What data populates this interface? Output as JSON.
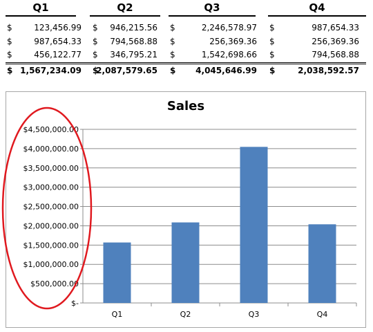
{
  "table": {
    "quarters": [
      "Q1",
      "Q2",
      "Q3",
      "Q4"
    ],
    "currency_symbol": "$",
    "rows": [
      [
        "123,456.99",
        "946,215.56",
        "2,246,578.97",
        "987,654.33"
      ],
      [
        "987,654.33",
        "794,568.88",
        "256,369.36",
        "256,369.36"
      ],
      [
        "456,122.77",
        "346,795.21",
        "1,542,698.66",
        "794,568.88"
      ]
    ],
    "totals": [
      "1,567,234.09",
      "2,087,579.65",
      "4,045,646.99",
      "2,038,592.57"
    ]
  },
  "annotation": {
    "shape": "ellipse",
    "color": "#e0191f"
  },
  "chart_data": {
    "type": "bar",
    "title": "Sales",
    "categories": [
      "Q1",
      "Q2",
      "Q3",
      "Q4"
    ],
    "values": [
      1567234.09,
      2087579.65,
      4045646.99,
      2038592.57
    ],
    "ylim": [
      0,
      4500000
    ],
    "yticks": [
      0,
      500000,
      1000000,
      1500000,
      2000000,
      2500000,
      3000000,
      3500000,
      4000000,
      4500000
    ],
    "ytick_labels": [
      "$-",
      "$500,000.00",
      "$1,000,000.00",
      "$1,500,000.00",
      "$2,000,000.00",
      "$2,500,000.00",
      "$3,000,000.00",
      "$3,500,000.00",
      "$4,000,000.00",
      "$4,500,000.00"
    ],
    "bar_color": "#4f81bd",
    "grid": true,
    "legend": "none"
  }
}
